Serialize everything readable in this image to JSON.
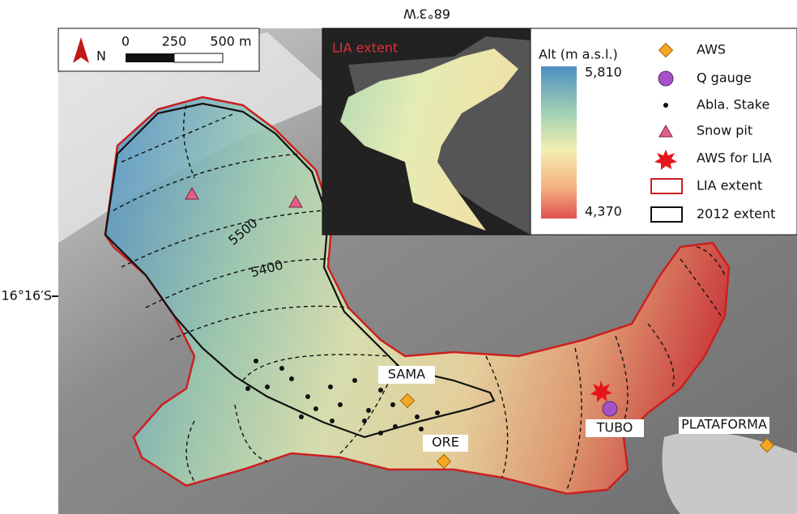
{
  "axes": {
    "longitude_label": "68°3′W",
    "latitude_label": "16°16′S"
  },
  "scale_bar": {
    "north": "N",
    "ticks": [
      "0",
      "250",
      "500 m"
    ]
  },
  "inset": {
    "title": "LIA extent"
  },
  "legend": {
    "colorbar_title": "Alt (m a.s.l.)",
    "colorbar_max": "5,810",
    "colorbar_min": "4,370",
    "items": [
      "AWS",
      "Q gauge",
      "Abla. Stake",
      "Snow pit",
      "AWS for LIA",
      "LIA extent",
      "2012 extent"
    ]
  },
  "contour_labels": [
    "5500",
    "5400"
  ],
  "stations": [
    "SAMA",
    "ORE",
    "TUBO",
    "PLATAFORMA"
  ]
}
